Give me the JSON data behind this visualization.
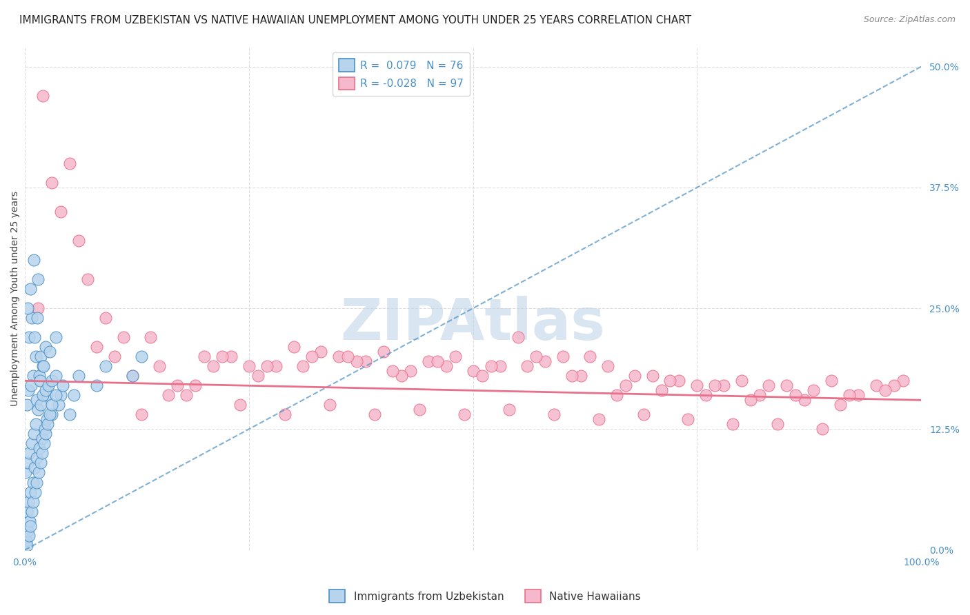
{
  "title": "IMMIGRANTS FROM UZBEKISTAN VS NATIVE HAWAIIAN UNEMPLOYMENT AMONG YOUTH UNDER 25 YEARS CORRELATION CHART",
  "source": "Source: ZipAtlas.com",
  "ylabel": "Unemployment Among Youth under 25 years",
  "xlim": [
    0,
    100
  ],
  "ylim": [
    0,
    52
  ],
  "yticks": [
    0,
    12.5,
    25.0,
    37.5,
    50.0
  ],
  "ytick_labels": [
    "0.0%",
    "12.5%",
    "25.0%",
    "37.5%",
    "50.0%"
  ],
  "xtick_positions": [
    0,
    100
  ],
  "xtick_labels": [
    "0.0%",
    "100.0%"
  ],
  "legend_R1": "0.079",
  "legend_N1": "76",
  "legend_R2": "-0.028",
  "legend_N2": "97",
  "color_blue": "#b8d4ed",
  "color_pink": "#f5b8cc",
  "color_blue_dark": "#4a90c4",
  "color_pink_dark": "#e8708a",
  "blue_trend_x": [
    0,
    100
  ],
  "blue_trend_y": [
    0,
    50
  ],
  "pink_trend_x": [
    0,
    100
  ],
  "pink_trend_y": [
    17.5,
    15.5
  ],
  "blue_x": [
    0.5,
    0.8,
    1.0,
    1.2,
    1.5,
    0.3,
    0.6,
    0.9,
    1.1,
    1.4,
    1.6,
    1.8,
    2.0,
    2.3,
    2.5,
    0.2,
    0.4,
    0.7,
    1.3,
    1.7,
    2.1,
    2.8,
    3.5,
    4.0,
    5.0,
    0.1,
    0.3,
    0.5,
    0.8,
    1.0,
    1.2,
    1.5,
    1.8,
    2.0,
    2.3,
    2.6,
    3.0,
    3.5,
    0.2,
    0.4,
    0.6,
    0.9,
    1.1,
    1.3,
    1.6,
    1.9,
    2.2,
    2.5,
    3.0,
    3.8,
    5.5,
    8.0,
    12.0,
    0.15,
    0.35,
    0.55,
    0.75,
    0.95,
    1.15,
    1.35,
    1.55,
    1.75,
    1.95,
    2.15,
    2.35,
    2.55,
    2.75,
    3.0,
    3.5,
    4.2,
    6.0,
    9.0,
    13.0,
    0.25,
    0.45,
    0.65
  ],
  "blue_y": [
    22.0,
    24.0,
    30.0,
    20.0,
    28.0,
    25.0,
    27.0,
    18.0,
    22.0,
    24.0,
    18.0,
    20.0,
    19.0,
    21.0,
    16.0,
    15.0,
    16.5,
    17.0,
    15.5,
    17.5,
    19.0,
    20.5,
    22.0,
    16.0,
    14.0,
    8.0,
    9.0,
    10.0,
    11.0,
    12.0,
    13.0,
    14.5,
    15.0,
    16.0,
    16.5,
    17.0,
    17.5,
    18.0,
    4.0,
    5.0,
    6.0,
    7.0,
    8.5,
    9.5,
    10.5,
    11.5,
    12.5,
    13.5,
    14.0,
    15.0,
    16.0,
    17.0,
    18.0,
    1.0,
    2.0,
    3.0,
    4.0,
    5.0,
    6.0,
    7.0,
    8.0,
    9.0,
    10.0,
    11.0,
    12.0,
    13.0,
    14.0,
    15.0,
    16.0,
    17.0,
    18.0,
    19.0,
    20.0,
    0.5,
    1.5,
    2.5
  ],
  "pink_x": [
    2.0,
    5.0,
    8.0,
    12.0,
    16.0,
    20.0,
    25.0,
    30.0,
    35.0,
    40.0,
    45.0,
    50.0,
    55.0,
    60.0,
    65.0,
    70.0,
    75.0,
    80.0,
    85.0,
    90.0,
    95.0,
    3.0,
    7.0,
    11.0,
    15.0,
    19.0,
    23.0,
    28.0,
    33.0,
    38.0,
    43.0,
    48.0,
    53.0,
    58.0,
    63.0,
    68.0,
    73.0,
    78.0,
    83.0,
    88.0,
    93.0,
    98.0,
    4.0,
    9.0,
    14.0,
    18.0,
    22.0,
    27.0,
    32.0,
    37.0,
    42.0,
    47.0,
    52.0,
    57.0,
    62.0,
    67.0,
    72.0,
    77.0,
    82.0,
    87.0,
    92.0,
    97.0,
    6.0,
    10.0,
    17.0,
    21.0,
    26.0,
    31.0,
    36.0,
    41.0,
    46.0,
    51.0,
    56.0,
    61.0,
    66.0,
    71.0,
    76.0,
    81.0,
    86.0,
    91.0,
    96.0,
    1.5,
    13.0,
    24.0,
    29.0,
    34.0,
    39.0,
    44.0,
    49.0,
    54.0,
    59.0,
    64.0,
    69.0,
    74.0,
    79.0,
    84.0,
    89.0
  ],
  "pink_y": [
    47.0,
    40.0,
    21.0,
    18.0,
    16.0,
    20.0,
    19.0,
    21.0,
    20.0,
    20.5,
    19.5,
    18.5,
    22.0,
    20.0,
    19.0,
    18.0,
    17.0,
    17.5,
    17.0,
    17.5,
    17.0,
    38.0,
    28.0,
    22.0,
    19.0,
    17.0,
    20.0,
    19.0,
    20.5,
    19.5,
    18.5,
    20.0,
    19.0,
    19.5,
    20.0,
    18.0,
    17.5,
    17.0,
    17.0,
    16.5,
    16.0,
    17.5,
    35.0,
    24.0,
    22.0,
    16.0,
    20.0,
    19.0,
    20.0,
    19.5,
    18.0,
    19.0,
    19.0,
    20.0,
    18.0,
    17.0,
    17.5,
    17.0,
    16.0,
    15.5,
    16.0,
    17.0,
    32.0,
    20.0,
    17.0,
    19.0,
    18.0,
    19.0,
    20.0,
    18.5,
    19.5,
    18.0,
    19.0,
    18.0,
    16.0,
    16.5,
    16.0,
    15.5,
    16.0,
    15.0,
    16.5,
    25.0,
    14.0,
    15.0,
    14.0,
    15.0,
    14.0,
    14.5,
    14.0,
    14.5,
    14.0,
    13.5,
    14.0,
    13.5,
    13.0,
    13.0,
    12.5
  ],
  "watermark_text": "ZIPAtlas",
  "watermark_color": "#c0d4e8",
  "title_fontsize": 11,
  "label_fontsize": 10,
  "legend_fontsize": 11
}
